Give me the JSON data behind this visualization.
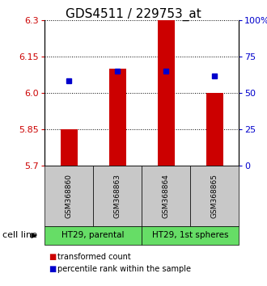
{
  "title": "GDS4511 / 229753_at",
  "samples": [
    "GSM368860",
    "GSM368863",
    "GSM368864",
    "GSM368865"
  ],
  "bar_low": [
    5.7,
    5.7,
    5.7,
    5.7
  ],
  "bar_high": [
    5.85,
    6.1,
    6.3,
    6.0
  ],
  "percentile_values": [
    6.05,
    6.09,
    6.09,
    6.07
  ],
  "ylim": [
    5.7,
    6.3
  ],
  "yticks_left": [
    5.7,
    5.85,
    6.0,
    6.15,
    6.3
  ],
  "yticks_right": [
    0,
    25,
    50,
    75,
    100
  ],
  "ylim_right": [
    0,
    100
  ],
  "bar_color": "#CC0000",
  "percentile_color": "#0000CC",
  "sample_box_color": "#C8C8C8",
  "green_color": "#66DD66",
  "cell_groups": [
    {
      "label": "HT29, parental",
      "start": 0,
      "end": 2
    },
    {
      "label": "HT29, 1st spheres",
      "start": 2,
      "end": 4
    }
  ],
  "tick_fontsize": 8,
  "title_fontsize": 11
}
